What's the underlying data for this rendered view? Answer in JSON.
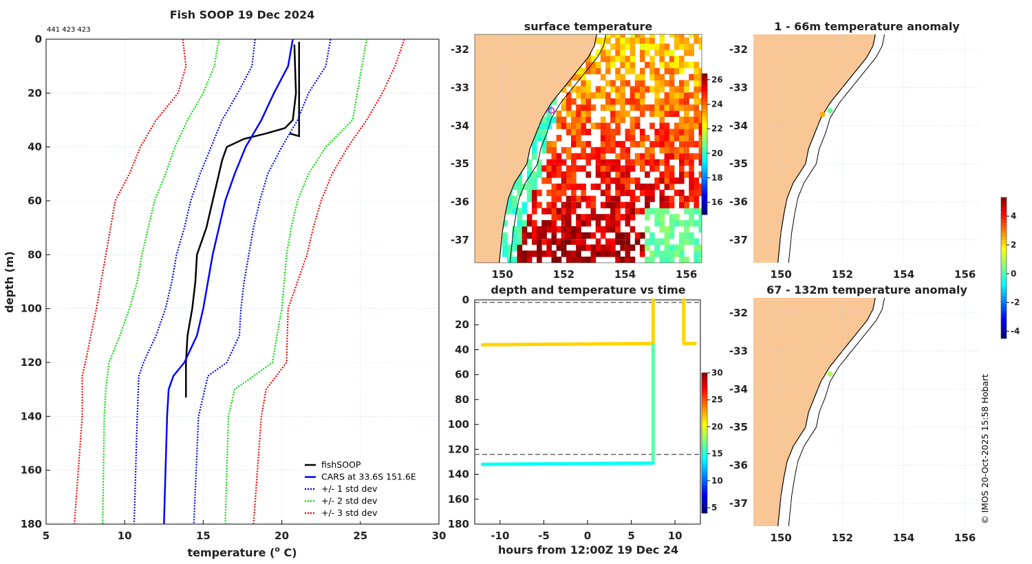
{
  "chart_data": [
    {
      "type": "line",
      "title": "Fish SOOP 19 Dec 2024",
      "subtitle": "441 423 423",
      "xlabel": "temperature (",
      "xlabel_sup": "o",
      "xlabel_end": " C)",
      "ylabel": "depth (m)",
      "xlim": [
        5,
        30
      ],
      "ylim": [
        0,
        180
      ],
      "y_reversed": true,
      "xticks": [
        5,
        10,
        15,
        20,
        25,
        30
      ],
      "yticks": [
        0,
        20,
        40,
        60,
        80,
        100,
        120,
        140,
        160,
        180
      ],
      "grid": true,
      "legend_position": "bottom-right",
      "series": [
        {
          "name": "fishSOOP",
          "color": "#000000",
          "style": "solid",
          "depth": [
            2,
            20,
            30,
            33,
            35,
            37,
            40,
            45,
            50,
            60,
            70,
            80,
            90,
            100,
            110,
            120,
            133
          ],
          "temp": [
            20.8,
            20.9,
            20.7,
            20.2,
            19.0,
            17.6,
            16.5,
            16.2,
            16.0,
            15.6,
            15.2,
            14.6,
            14.5,
            14.3,
            14.0,
            13.9,
            13.9
          ]
        },
        {
          "name": "",
          "color": "#000000",
          "style": "solid",
          "depth": [
            1,
            36,
            35
          ],
          "temp": [
            21.1,
            21.1,
            20.5
          ]
        },
        {
          "name": "CARS at 33.6S 151.6E",
          "color": "#0000ff",
          "style": "solid",
          "depth": [
            0,
            10,
            20,
            30,
            40,
            50,
            60,
            70,
            80,
            90,
            100,
            110,
            120,
            125,
            130,
            140,
            160,
            180
          ],
          "temp": [
            20.7,
            20.4,
            19.5,
            18.7,
            17.7,
            17.0,
            16.4,
            16.0,
            15.6,
            15.3,
            15.0,
            14.6,
            13.8,
            13.1,
            12.8,
            12.7,
            12.6,
            12.5
          ]
        },
        {
          "name": "+/- 1 std dev",
          "color": "#0000ff",
          "style": "dotted",
          "depth": [
            0,
            10,
            20,
            30,
            40,
            50,
            60,
            70,
            80,
            90,
            100,
            110,
            120,
            125,
            140,
            180
          ],
          "temp": [
            18.3,
            18.1,
            17.2,
            16.2,
            15.5,
            14.8,
            14.2,
            13.8,
            13.3,
            13.0,
            12.6,
            12.0,
            11.2,
            10.9,
            10.8,
            10.6
          ]
        },
        {
          "name": "",
          "color": "#0000ff",
          "style": "dotted",
          "depth": [
            0,
            10,
            20,
            30,
            40,
            50,
            60,
            70,
            80,
            90,
            100,
            110,
            120,
            125,
            140,
            180
          ],
          "temp": [
            23.1,
            22.8,
            21.7,
            21.0,
            20.0,
            19.1,
            18.6,
            18.2,
            17.9,
            17.6,
            17.4,
            17.3,
            16.5,
            15.3,
            14.7,
            14.4
          ]
        },
        {
          "name": "+/- 2 std dev",
          "color": "#00dd00",
          "style": "dotted",
          "depth": [
            0,
            10,
            20,
            30,
            40,
            50,
            60,
            70,
            80,
            90,
            100,
            110,
            120,
            130,
            140,
            180
          ],
          "temp": [
            16.0,
            15.7,
            15.0,
            14.0,
            13.2,
            12.6,
            11.9,
            11.5,
            11.1,
            10.8,
            10.3,
            9.7,
            9.0,
            8.8,
            8.7,
            8.6
          ]
        },
        {
          "name": "",
          "color": "#00dd00",
          "style": "dotted",
          "depth": [
            0,
            10,
            30,
            40,
            50,
            60,
            70,
            80,
            100,
            120,
            130,
            140,
            180
          ],
          "temp": [
            25.4,
            25.1,
            24.5,
            22.8,
            21.7,
            21.0,
            20.6,
            20.3,
            20.0,
            19.4,
            17.0,
            16.6,
            16.4
          ]
        },
        {
          "name": "+/- 3 std dev",
          "color": "#ff0000",
          "style": "dotted",
          "depth": [
            0,
            10,
            20,
            30,
            40,
            50,
            60,
            70,
            80,
            90,
            100,
            120,
            125,
            140,
            180
          ],
          "temp": [
            13.7,
            13.9,
            13.4,
            12.0,
            11.0,
            10.3,
            9.4,
            9.1,
            8.8,
            8.5,
            8.2,
            7.5,
            7.3,
            7.3,
            6.8
          ]
        },
        {
          "name": "",
          "color": "#ff0000",
          "style": "dotted",
          "depth": [
            0,
            10,
            20,
            30,
            40,
            50,
            60,
            70,
            80,
            90,
            100,
            120,
            130,
            140,
            180
          ],
          "temp": [
            27.8,
            27.2,
            26.4,
            25.4,
            24.2,
            23.2,
            22.5,
            22.0,
            21.6,
            21.0,
            20.4,
            20.3,
            19.0,
            18.7,
            18.2
          ]
        }
      ]
    },
    {
      "type": "heatmap",
      "title": "surface temperature",
      "xticks": [
        150,
        152,
        154,
        156
      ],
      "yticks": [
        -32,
        -33,
        -34,
        -35,
        -36,
        -37
      ],
      "xlim": [
        149.1,
        156.5
      ],
      "ylim": [
        -37.5,
        -31.6
      ],
      "colorbar": {
        "ticks": [
          16,
          18,
          20,
          22,
          24,
          26
        ],
        "range": [
          15,
          26.5
        ]
      },
      "marker": {
        "lon": 151.6,
        "lat": -33.6
      }
    },
    {
      "type": "scatter",
      "title": "depth and temperature vs time",
      "xlabel": "hours from 12:00Z 19 Dec 24",
      "xticks": [
        -10,
        -5,
        0,
        5,
        10
      ],
      "yticks": [
        0,
        20,
        40,
        60,
        80,
        100,
        120,
        140,
        160,
        180
      ],
      "xlim": [
        -12.9,
        12.9
      ],
      "ylim": [
        0,
        180
      ],
      "dashed_depths": [
        2,
        124
      ],
      "colorbar": {
        "ticks": [
          5,
          10,
          15,
          20,
          25,
          30
        ],
        "range": [
          4,
          30
        ]
      },
      "tracks": [
        {
          "hours": [
            -12,
            7.5
          ],
          "depth": [
            36,
            35
          ],
          "temp": 21.3
        },
        {
          "hours": [
            7.5,
            7.5
          ],
          "depth": [
            0,
            36
          ],
          "temp": 21.3
        },
        {
          "hours": [
            7.5,
            7.5
          ],
          "depth": [
            36,
            131
          ],
          "temp": 16
        },
        {
          "hours": [
            7.5,
            -12
          ],
          "depth": [
            131,
            132
          ],
          "temp": 14
        },
        {
          "hours": [
            11,
            11
          ],
          "depth": [
            0,
            35
          ],
          "temp": 21.3
        },
        {
          "hours": [
            11,
            12.3
          ],
          "depth": [
            35,
            35
          ],
          "temp": 21.3
        }
      ]
    },
    {
      "type": "scatter",
      "title": "1 - 66m temperature anomaly",
      "xticks": [
        150,
        152,
        154,
        156
      ],
      "yticks": [
        -32,
        -33,
        -34,
        -35,
        -36,
        -37
      ],
      "points": [
        {
          "lon": 151.6,
          "lat": -33.6,
          "anomaly": 0.2
        },
        {
          "lon": 151.35,
          "lat": -33.7,
          "anomaly": 2.4
        }
      ]
    },
    {
      "type": "scatter",
      "title": "67 - 132m temperature anomaly",
      "xticks": [
        150,
        152,
        154,
        156
      ],
      "yticks": [
        -32,
        -33,
        -34,
        -35,
        -36,
        -37
      ],
      "points": [
        {
          "lon": 151.6,
          "lat": -33.6,
          "anomaly": 0.8
        }
      ],
      "colorbar": {
        "ticks": [
          4,
          2,
          0,
          -2,
          -4
        ],
        "range": [
          -4.5,
          5.3
        ]
      }
    }
  ],
  "credit": "© IMOS 20-Oct-2025 15:58 Hobart",
  "colors": {
    "land": "#f9c796",
    "grid": "#b8c4e8"
  }
}
